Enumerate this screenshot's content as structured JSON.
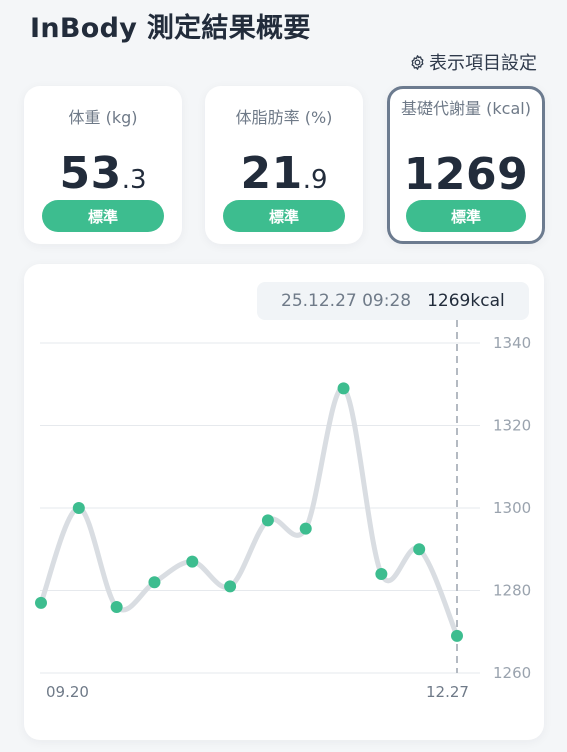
{
  "header": {
    "title": "InBody 測定結果概要",
    "settings_label": "表示項目設定"
  },
  "cards": [
    {
      "label": "体重 (kg)",
      "value_int": "53",
      "value_dec": ".3",
      "status": "標準",
      "selected": false
    },
    {
      "label": "体脂肪率 (%)",
      "value_int": "21",
      "value_dec": ".9",
      "status": "標準",
      "selected": false
    },
    {
      "label": "基礎代謝量 (kcal)",
      "value_int": "1269",
      "value_dec": "",
      "status": "標準",
      "selected": true
    }
  ],
  "colors": {
    "accent": "#3dbd8f",
    "selected_border": "#6c7b8f",
    "line": "#d9dde2",
    "background": "#f4f6f8"
  },
  "tooltip": {
    "time": "25.12.27 09:28",
    "value": "1269kcal"
  },
  "chart_data": {
    "type": "line",
    "ylim": [
      1260,
      1340
    ],
    "yticks": [
      1340,
      1320,
      1300,
      1280,
      1260
    ],
    "xticks": [
      "09.20",
      "12.27"
    ],
    "series": [
      {
        "values": [
          1277,
          1300,
          1276,
          1282,
          1287,
          1281,
          1297,
          1295,
          1329,
          1284,
          1290,
          1269
        ]
      }
    ],
    "selected_index": 11,
    "grid": true,
    "yaxis_position": "right"
  }
}
